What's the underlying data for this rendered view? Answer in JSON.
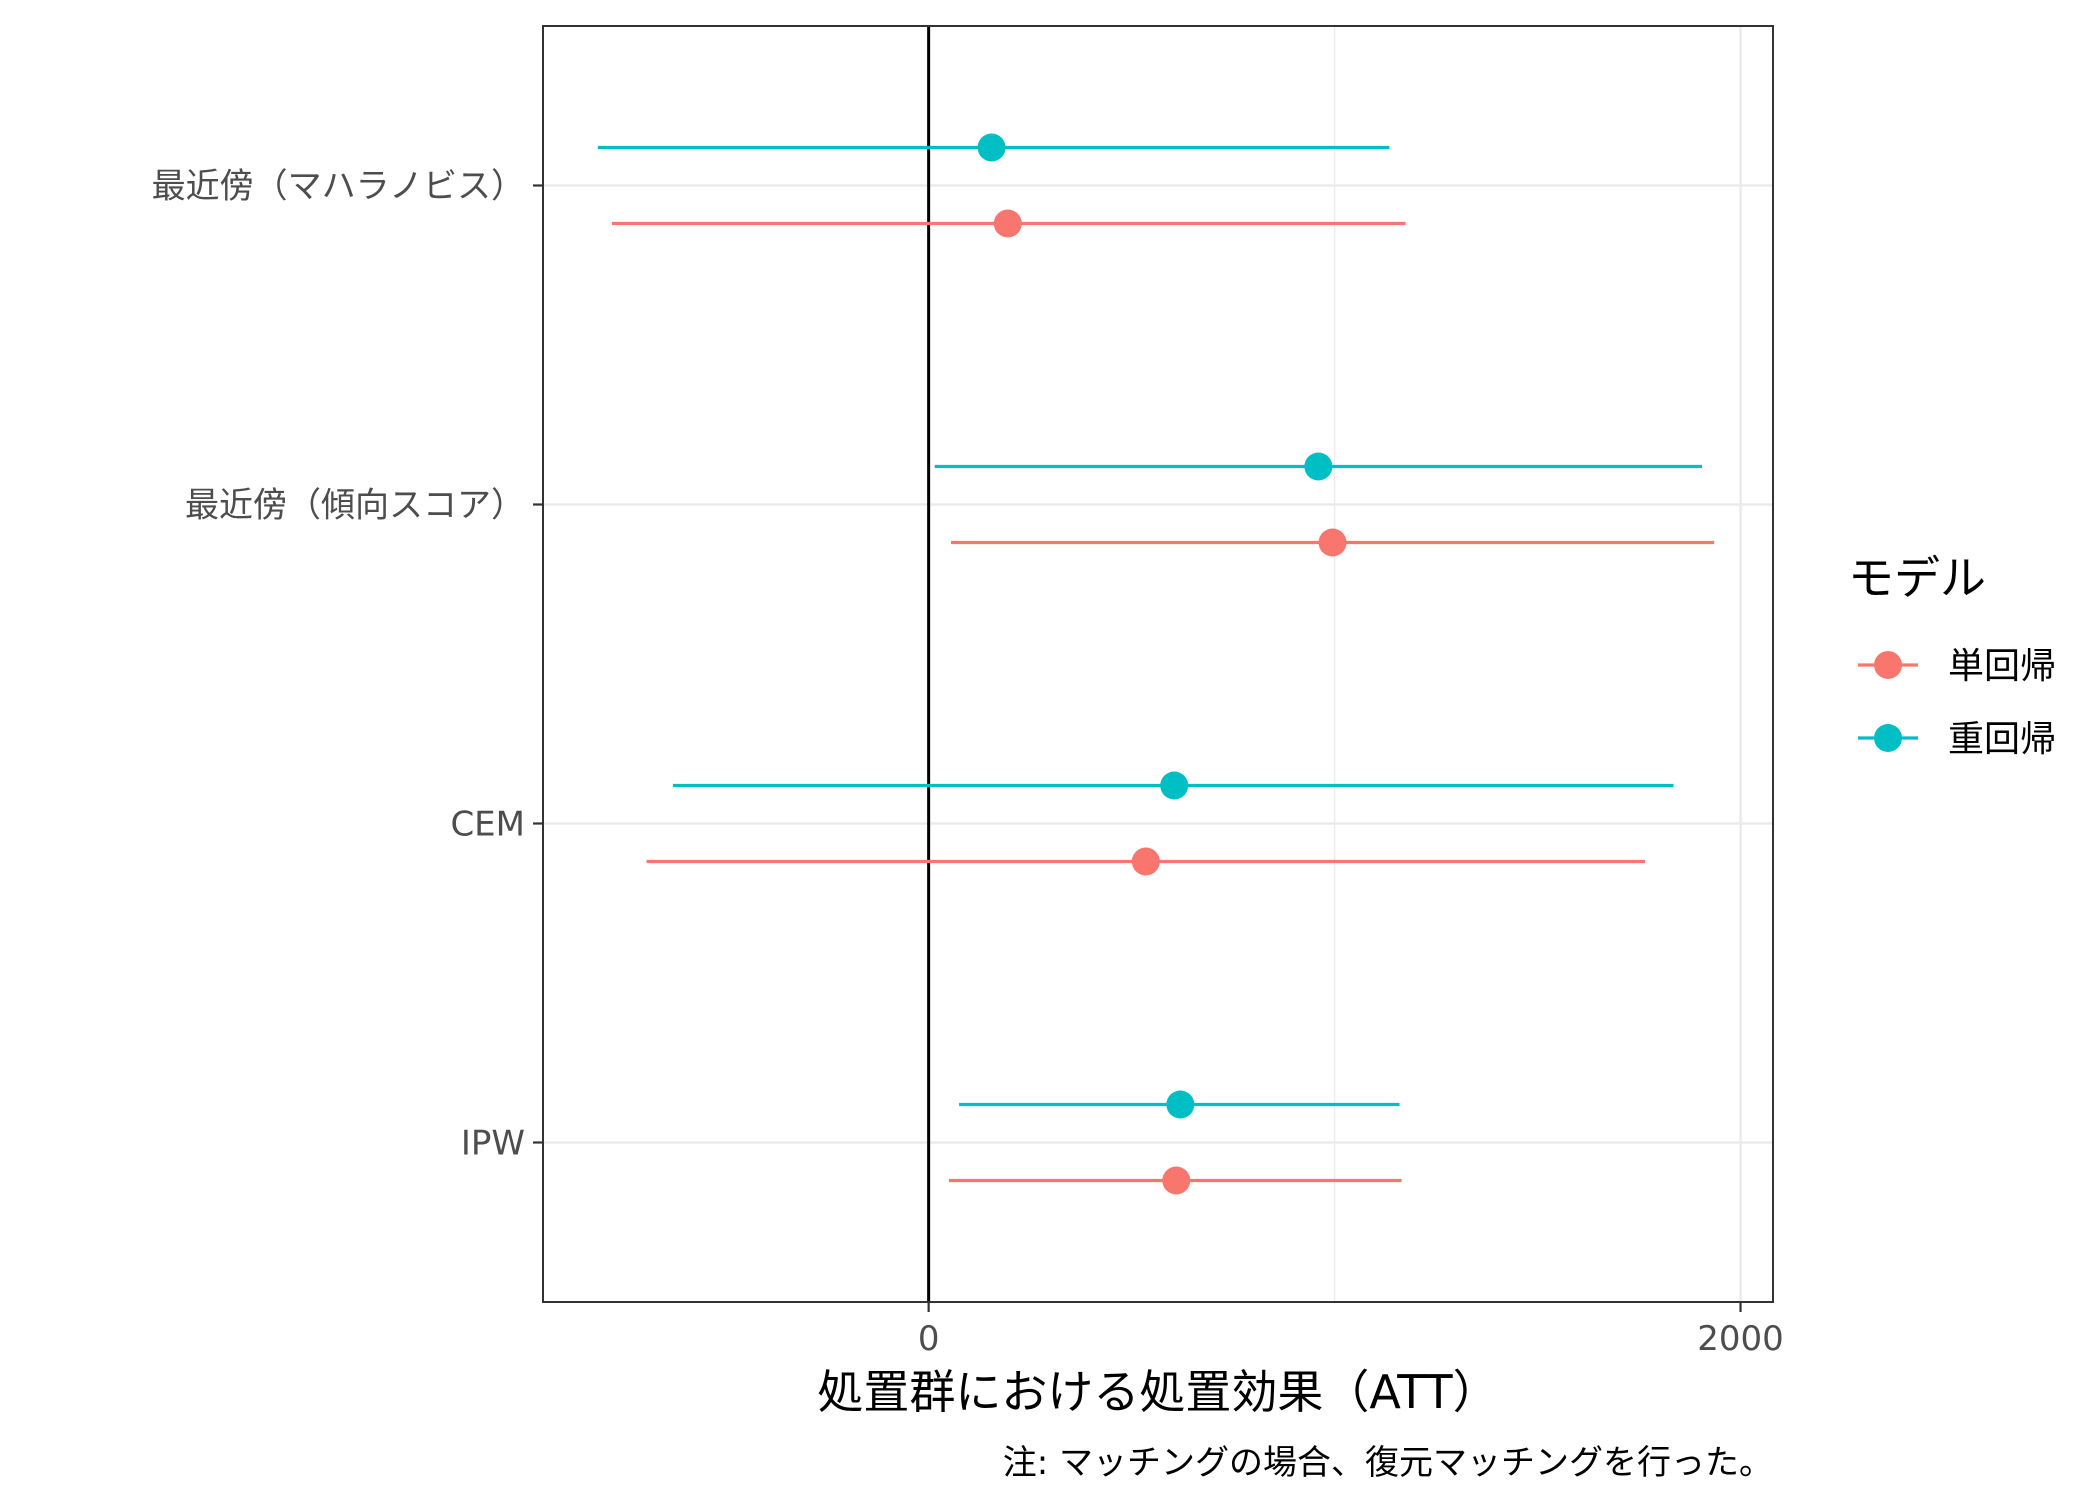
{
  "chart_data": {
    "type": "scatter",
    "subtype": "pointrange",
    "orientation": "horizontal",
    "xlabel": "処置群における処置効果（ATT）",
    "ylabel": "",
    "caption": "注: マッチングの場合、復元マッチングを行った。",
    "xlim": [
      -950,
      2080
    ],
    "x_ticks": [
      0,
      2000,
      4000
    ],
    "reference_line_x": 0,
    "grid": true,
    "categories": [
      "最近傍（マハラノビス）",
      "最近傍（傾向スコア）",
      "CEM",
      "IPW"
    ],
    "legend": {
      "title": "モデル",
      "position": "right"
    },
    "series": [
      {
        "name": "単回帰",
        "color": "#F8766D",
        "points": [
          {
            "category": "最近傍（マハラノビス）",
            "estimate": 195,
            "lower": -780,
            "upper": 1175
          },
          {
            "category": "最近傍（傾向スコア）",
            "estimate": 995,
            "lower": 55,
            "upper": 1935
          },
          {
            "category": "CEM",
            "estimate": 535,
            "lower": -695,
            "upper": 1765
          },
          {
            "category": "IPW",
            "estimate": 610,
            "lower": 50,
            "upper": 1165
          }
        ]
      },
      {
        "name": "重回帰",
        "color": "#00BFC4",
        "points": [
          {
            "category": "最近傍（マハラノビス）",
            "estimate": 155,
            "lower": -815,
            "upper": 1135
          },
          {
            "category": "最近傍（傾向スコア）",
            "estimate": 960,
            "lower": 15,
            "upper": 1905
          },
          {
            "category": "CEM",
            "estimate": 605,
            "lower": -630,
            "upper": 1835
          },
          {
            "category": "IPW",
            "estimate": 620,
            "lower": 75,
            "upper": 1160
          }
        ]
      }
    ]
  }
}
